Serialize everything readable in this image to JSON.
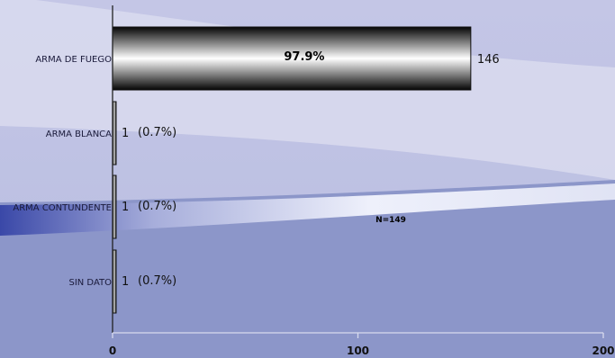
{
  "chart_data": {
    "type": "bar",
    "orientation": "horizontal",
    "categories": [
      "ARMA DE FUEGO",
      "ARMA BLANCA",
      "ARMA CONTUNDENTE",
      "SIN DATO"
    ],
    "values": [
      146,
      1,
      1,
      1
    ],
    "value_labels": [
      "146",
      "1",
      "1",
      "1"
    ],
    "percent_labels": [
      "97.9%",
      "(0.7%)",
      "(0.7%)",
      "(0.7%)"
    ],
    "xlim": [
      0,
      200
    ],
    "x_ticks": [
      0,
      100,
      200
    ],
    "x_tick_labels": [
      "0",
      "100",
      "200"
    ],
    "grid": false,
    "annotation": "N=149"
  },
  "colors": {
    "background_top": "#c9cbe8",
    "background_bottom": "#8c96c9",
    "bar_dark": "#050505",
    "bar_light": "#ffffff",
    "axis": "#222222"
  }
}
